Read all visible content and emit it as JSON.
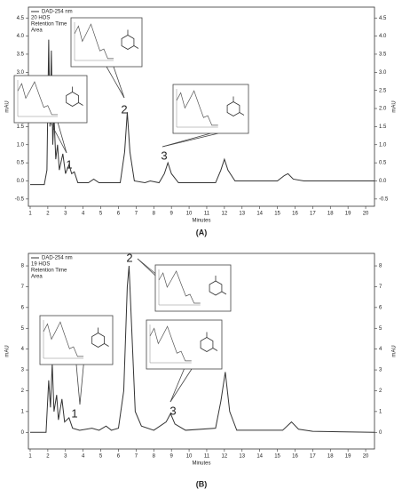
{
  "chart_data": [
    {
      "type": "line",
      "label": "(A)",
      "xlabel": "Minutes",
      "ylabel": "mAU",
      "legend_extra": [
        "20 HOS",
        "Retention Time",
        "Area"
      ],
      "annotations": [
        "1",
        "2",
        "3"
      ],
      "xlim": [
        0.9,
        20.5
      ],
      "xticks": [
        1,
        2,
        3,
        4,
        5,
        6,
        7,
        8,
        9,
        10,
        11,
        12,
        13,
        14,
        15,
        16,
        17,
        18,
        19,
        20
      ],
      "ylim": [
        -0.7,
        4.8
      ],
      "yticks": [
        -0.5,
        {
          "value": 0,
          "label": "0.0"
        },
        0.5,
        {
          "value": 1,
          "label": "1.0"
        },
        1.5,
        {
          "value": 2,
          "label": "2.0"
        },
        2.5,
        {
          "value": 3,
          "label": "3.0"
        },
        3.5,
        {
          "value": 4,
          "label": "4.0"
        },
        4.5
      ],
      "x": [
        1.0,
        1.8,
        1.95,
        2.05,
        2.12,
        2.2,
        2.28,
        2.35,
        2.45,
        2.55,
        2.65,
        2.85,
        3.0,
        3.2,
        3.35,
        3.5,
        3.7,
        4.3,
        4.6,
        4.9,
        6.1,
        6.35,
        6.5,
        6.65,
        6.9,
        7.5,
        7.8,
        8.3,
        8.6,
        8.8,
        9.0,
        9.4,
        11.5,
        11.8,
        12.0,
        12.2,
        12.6,
        15.0,
        15.4,
        15.6,
        15.9,
        16.5,
        20.5
      ],
      "series": [
        {
          "name": "DAD-254 nm",
          "color": "#333333",
          "values": [
            -0.1,
            -0.1,
            0.3,
            3.9,
            1.5,
            3.6,
            1.0,
            1.8,
            0.6,
            1.0,
            0.3,
            0.75,
            0.2,
            0.45,
            0.2,
            0.25,
            -0.05,
            -0.05,
            0.05,
            -0.05,
            -0.05,
            0.8,
            1.9,
            0.8,
            0.0,
            -0.05,
            0.0,
            -0.05,
            0.2,
            0.5,
            0.2,
            -0.05,
            -0.05,
            0.3,
            0.6,
            0.3,
            0.0,
            0.0,
            0.15,
            0.2,
            0.05,
            0.0,
            0.0
          ]
        }
      ]
    },
    {
      "type": "line",
      "label": "(B)",
      "xlabel": "Minutes",
      "ylabel": "mAU",
      "legend_extra": [
        "19 HOS",
        "Retention Time",
        "Area"
      ],
      "annotations": [
        "1",
        "2",
        "3"
      ],
      "xlim": [
        0.9,
        20.5
      ],
      "xticks": [
        1,
        2,
        3,
        4,
        5,
        6,
        7,
        8,
        9,
        10,
        11,
        12,
        13,
        14,
        15,
        16,
        17,
        18,
        19,
        20
      ],
      "ylim": [
        -0.8,
        8.6
      ],
      "yticks": [
        0,
        1,
        2,
        3,
        4,
        5,
        6,
        7,
        8
      ],
      "x": [
        1.0,
        1.9,
        2.05,
        2.15,
        2.25,
        2.35,
        2.5,
        2.6,
        2.8,
        2.95,
        3.2,
        3.4,
        3.8,
        4.5,
        4.9,
        5.3,
        5.6,
        6.0,
        6.3,
        6.5,
        6.6,
        6.75,
        6.95,
        7.3,
        8.0,
        8.7,
        8.95,
        9.2,
        9.8,
        11.5,
        11.8,
        12.05,
        12.3,
        12.7,
        15.3,
        15.8,
        16.2,
        17.0,
        20.5
      ],
      "series": [
        {
          "name": "DAD-254 nm",
          "color": "#333333",
          "values": [
            0.0,
            0.0,
            2.5,
            1.2,
            3.3,
            1.0,
            1.8,
            0.6,
            1.6,
            0.5,
            0.7,
            0.2,
            0.1,
            0.2,
            0.1,
            0.3,
            0.1,
            0.2,
            2.0,
            7.0,
            8.0,
            5.0,
            1.0,
            0.3,
            0.1,
            0.5,
            0.9,
            0.4,
            0.1,
            0.2,
            1.5,
            2.9,
            1.0,
            0.1,
            0.1,
            0.5,
            0.15,
            0.05,
            0.0
          ]
        }
      ]
    }
  ]
}
